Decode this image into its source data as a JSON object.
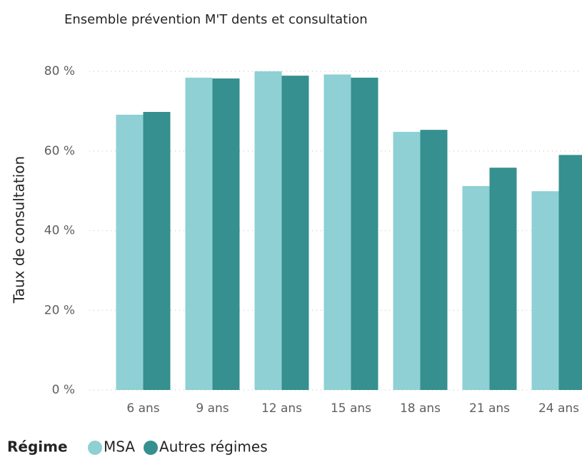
{
  "chart_data": {
    "type": "bar",
    "title": "Ensemble prévention M'T dents et consultation",
    "y_label": "Taux de consultation",
    "categories": [
      "6 ans",
      "9 ans",
      "12 ans",
      "15 ans",
      "18 ans",
      "21 ans",
      "24 ans"
    ],
    "series": [
      {
        "name": "MSA",
        "color": "#8ed0d3",
        "values": [
          69.1,
          78.4,
          80,
          79.2,
          64.8,
          51.2,
          49.9
        ]
      },
      {
        "name": "Autres régimes",
        "color": "#35908f",
        "values": [
          69.8,
          78.2,
          78.9,
          78.4,
          65.3,
          55.8,
          59.0
        ]
      }
    ],
    "legend_title": "Régime",
    "ylim": [
      0,
      80
    ],
    "yticks": [
      {
        "value": 0,
        "label": "0 %"
      },
      {
        "value": 20,
        "label": "20 %"
      },
      {
        "value": 40,
        "label": "40 %"
      },
      {
        "value": 60,
        "label": "60 %"
      },
      {
        "value": 80,
        "label": "80 %"
      }
    ],
    "grid": true
  }
}
